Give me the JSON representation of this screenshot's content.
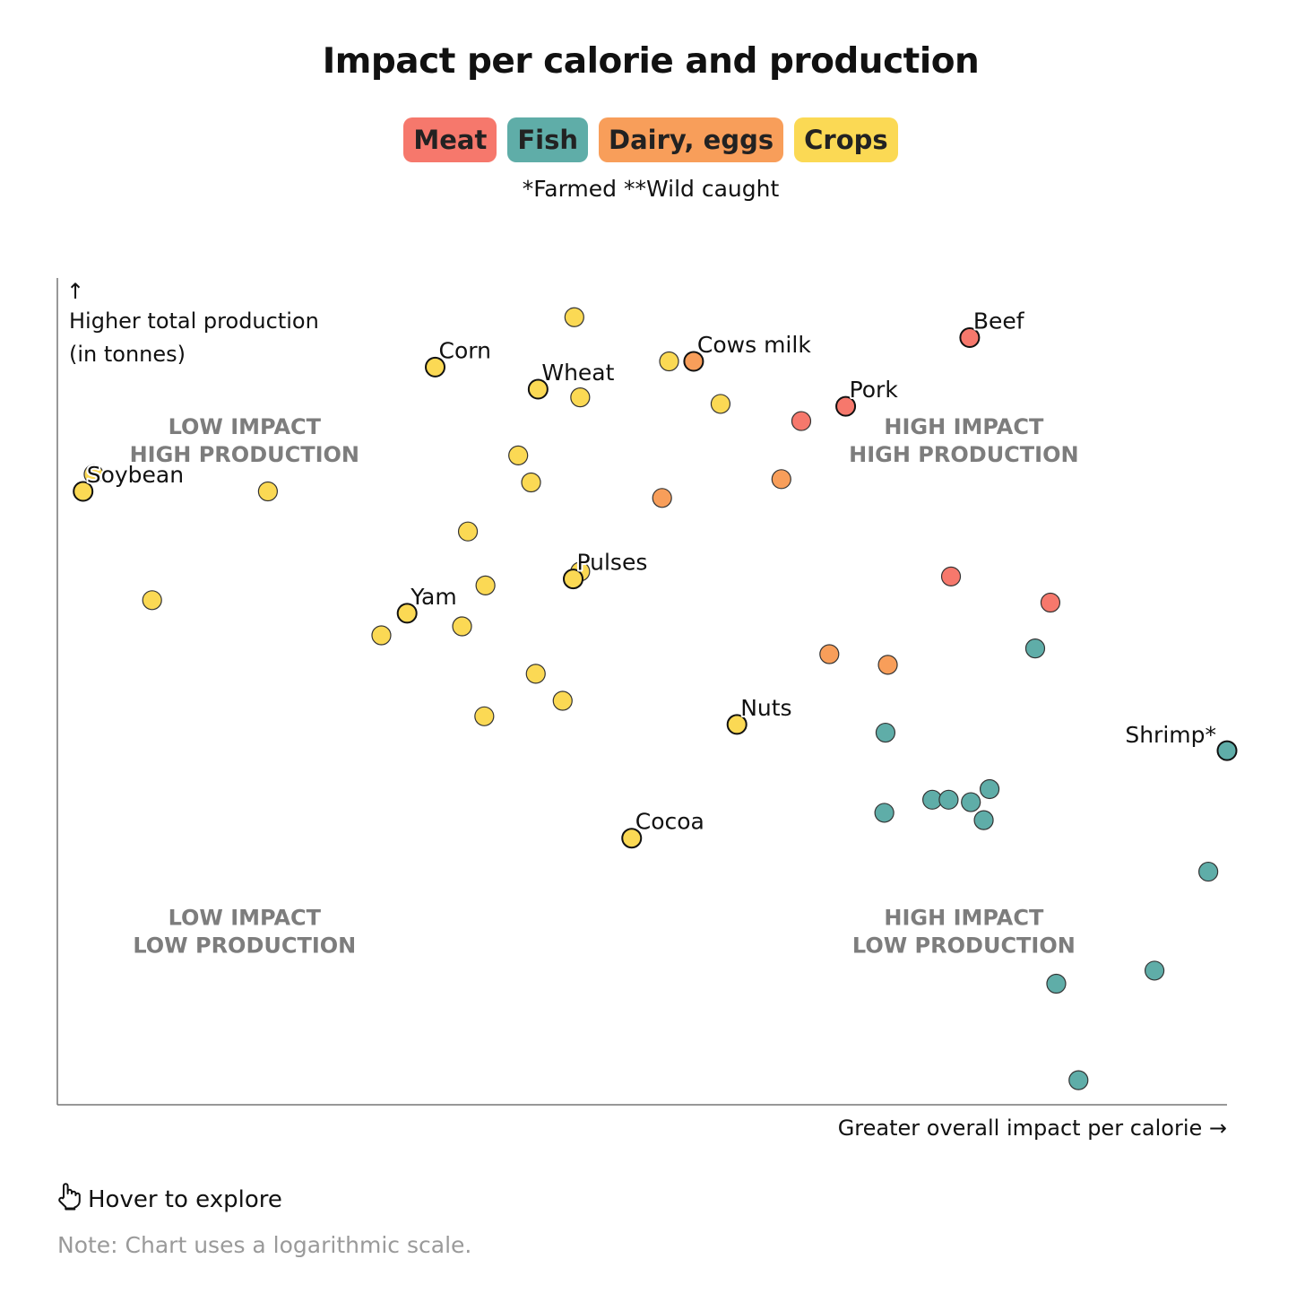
{
  "title": "Impact per calorie and production",
  "legend": [
    {
      "label": "Meat",
      "color": "#f6786c"
    },
    {
      "label": "Fish",
      "color": "#5fada8"
    },
    {
      "label": "Dairy, eggs",
      "color": "#f89e5a"
    },
    {
      "label": "Crops",
      "color": "#fbd954"
    }
  ],
  "subtitle": "*Farmed **Wild caught",
  "footer": {
    "hover_label": "Hover to explore",
    "hover_icon": "pointing-hand-icon",
    "note": "Note: Chart uses a logarithmic scale."
  },
  "chart_data": {
    "type": "scatter",
    "title": "Impact per calorie and production",
    "xlabel": "Greater overall impact per calorie →",
    "ylabel_arrow": "↑",
    "ylabel_lines": [
      "Higher total production",
      "(in tonnes)"
    ],
    "xlim": [
      0,
      100
    ],
    "ylim": [
      0,
      100
    ],
    "x_scale": "log",
    "y_scale": "log",
    "grid": false,
    "legend_position": "top-center",
    "quadrant_labels": [
      {
        "lines": [
          "LOW IMPACT",
          "HIGH PRODUCTION"
        ],
        "x": 16,
        "y": 82
      },
      {
        "lines": [
          "HIGH IMPACT",
          "HIGH PRODUCTION"
        ],
        "x": 77.5,
        "y": 82
      },
      {
        "lines": [
          "LOW IMPACT",
          "LOW PRODUCTION"
        ],
        "x": 16,
        "y": 22
      },
      {
        "lines": [
          "HIGH IMPACT",
          "LOW PRODUCTION"
        ],
        "x": 77.5,
        "y": 22
      }
    ],
    "series": [
      {
        "name": "Meat",
        "color": "#f6786c",
        "points": [
          {
            "x": 78,
            "y": 93.8,
            "label": "Beef"
          },
          {
            "x": 67.4,
            "y": 85.4,
            "label": "Pork"
          },
          {
            "x": 63.6,
            "y": 83.6
          },
          {
            "x": 76.4,
            "y": 64.6
          },
          {
            "x": 84.9,
            "y": 61.4
          }
        ]
      },
      {
        "name": "Fish",
        "color": "#5fada8",
        "points": [
          {
            "x": 83.6,
            "y": 55.8
          },
          {
            "x": 70.8,
            "y": 45.5
          },
          {
            "x": 100,
            "y": 43.3,
            "label": "Shrimp*"
          },
          {
            "x": 79.7,
            "y": 38.6
          },
          {
            "x": 74.8,
            "y": 37.3
          },
          {
            "x": 76.2,
            "y": 37.3
          },
          {
            "x": 78.1,
            "y": 37
          },
          {
            "x": 70.7,
            "y": 35.7
          },
          {
            "x": 79.2,
            "y": 34.8
          },
          {
            "x": 98.4,
            "y": 28.5
          },
          {
            "x": 93.8,
            "y": 16.4
          },
          {
            "x": 85.4,
            "y": 14.8
          },
          {
            "x": 87.3,
            "y": 3
          }
        ]
      },
      {
        "name": "Dairy, eggs",
        "color": "#f89e5a",
        "points": [
          {
            "x": 54.4,
            "y": 90.9,
            "label": "Cows milk"
          },
          {
            "x": 61.9,
            "y": 76.5
          },
          {
            "x": 51.7,
            "y": 74.2
          },
          {
            "x": 66,
            "y": 55.1
          },
          {
            "x": 71,
            "y": 53.8
          }
        ]
      },
      {
        "name": "Crops",
        "color": "#fbd954",
        "points": [
          {
            "x": 44.2,
            "y": 96.3
          },
          {
            "x": 32.3,
            "y": 90.2,
            "label": "Corn"
          },
          {
            "x": 52.3,
            "y": 90.9
          },
          {
            "x": 41.1,
            "y": 87.5,
            "label": "Wheat"
          },
          {
            "x": 44.7,
            "y": 86.5
          },
          {
            "x": 56.7,
            "y": 85.7
          },
          {
            "x": 3.1,
            "y": 77.1
          },
          {
            "x": 39.4,
            "y": 79.4
          },
          {
            "x": 2.2,
            "y": 75,
            "label": "Soybean"
          },
          {
            "x": 18,
            "y": 75
          },
          {
            "x": 40.5,
            "y": 76.1
          },
          {
            "x": 35.1,
            "y": 70.1
          },
          {
            "x": 44.7,
            "y": 65.2
          },
          {
            "x": 44.1,
            "y": 64.3,
            "label": "Pulses"
          },
          {
            "x": 36.6,
            "y": 63.5
          },
          {
            "x": 8.1,
            "y": 61.7
          },
          {
            "x": 29.9,
            "y": 60.1,
            "label": "Yam"
          },
          {
            "x": 34.6,
            "y": 58.5
          },
          {
            "x": 27.7,
            "y": 57.4
          },
          {
            "x": 40.9,
            "y": 52.7
          },
          {
            "x": 43.2,
            "y": 49.4
          },
          {
            "x": 36.5,
            "y": 47.5
          },
          {
            "x": 58.1,
            "y": 46.5,
            "label": "Nuts"
          },
          {
            "x": 49.1,
            "y": 32.6,
            "label": "Cocoa"
          }
        ]
      }
    ]
  }
}
